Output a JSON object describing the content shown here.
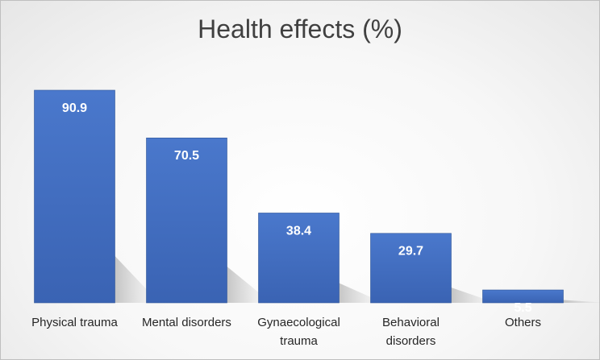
{
  "chart_data": {
    "type": "bar",
    "title": "Health effects (%)",
    "categories": [
      [
        "Physical trauma"
      ],
      [
        "Mental disorders"
      ],
      [
        "Gynaecological",
        "trauma"
      ],
      [
        "Behavioral",
        "disorders"
      ],
      [
        "Others"
      ]
    ],
    "values": [
      90.9,
      70.5,
      38.4,
      29.7,
      5.5
    ],
    "data_labels": [
      "90.9",
      "70.5",
      "38.4",
      "29.7",
      "5.5"
    ],
    "xlabel": "",
    "ylabel": "",
    "ylim": [
      0,
      100
    ],
    "grid": false,
    "legend": "none",
    "colors": {
      "bar": "#4472c4",
      "bar_dark": "#2f5597",
      "label": "#ffffff",
      "title": "#404040"
    }
  }
}
